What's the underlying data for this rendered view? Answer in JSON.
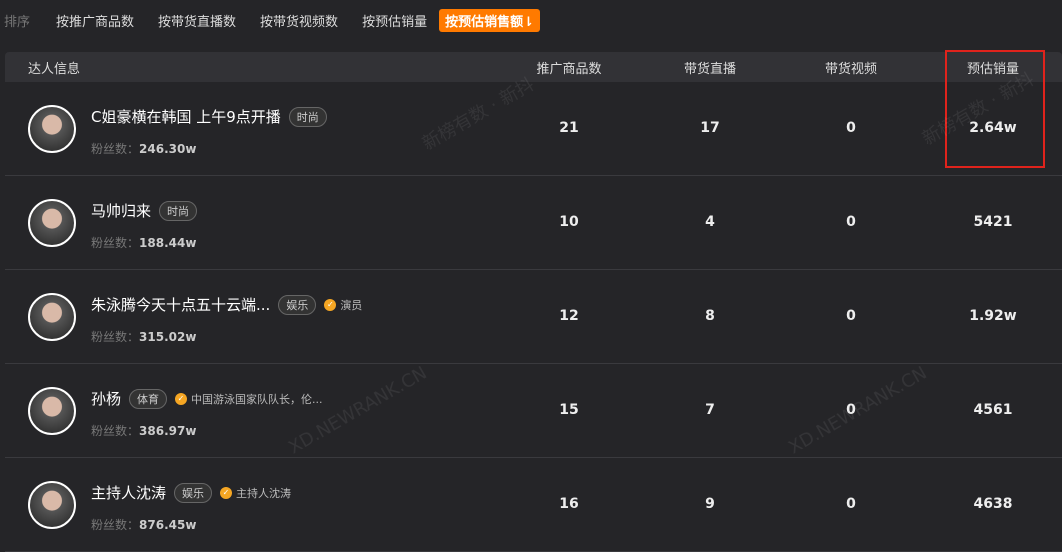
{
  "sort": {
    "label": "排序",
    "options": [
      "按推广商品数",
      "按带货直播数",
      "按带货视频数",
      "按预估销量",
      "按预估销售额⇂"
    ],
    "active": 4
  },
  "table": {
    "headers": [
      "达人信息",
      "推广商品数",
      "带货直播",
      "带货视频",
      "预估销量"
    ],
    "fans_label": "粉丝数：",
    "rows": [
      {
        "name": "C姐豪横在韩国 上午9点开播",
        "tag": "时尚",
        "verify": "",
        "fans": "246.30w",
        "products": "21",
        "live": "17",
        "video": "0",
        "sales": "2.64w"
      },
      {
        "name": "马帅归来",
        "tag": "时尚",
        "verify": "",
        "fans": "188.44w",
        "products": "10",
        "live": "4",
        "video": "0",
        "sales": "5421"
      },
      {
        "name": "朱泳腾今天十点五十云端...",
        "tag": "娱乐",
        "verify": "演员",
        "fans": "315.02w",
        "products": "12",
        "live": "8",
        "video": "0",
        "sales": "1.92w"
      },
      {
        "name": "孙杨",
        "tag": "体育",
        "verify": "中国游泳国家队队长，伦...",
        "fans": "386.97w",
        "products": "15",
        "live": "7",
        "video": "0",
        "sales": "4561"
      },
      {
        "name": "主持人沈涛",
        "tag": "娱乐",
        "verify": "主持人沈涛",
        "fans": "876.45w",
        "products": "16",
        "live": "9",
        "video": "0",
        "sales": "4638"
      }
    ]
  },
  "watermarks": [
    "新榜有数 · 新抖",
    "XD.NEWRANK.CN"
  ],
  "colors": {
    "accent": "#ff7a00",
    "highlight": "#e0231c",
    "verify": "#f5a623"
  }
}
